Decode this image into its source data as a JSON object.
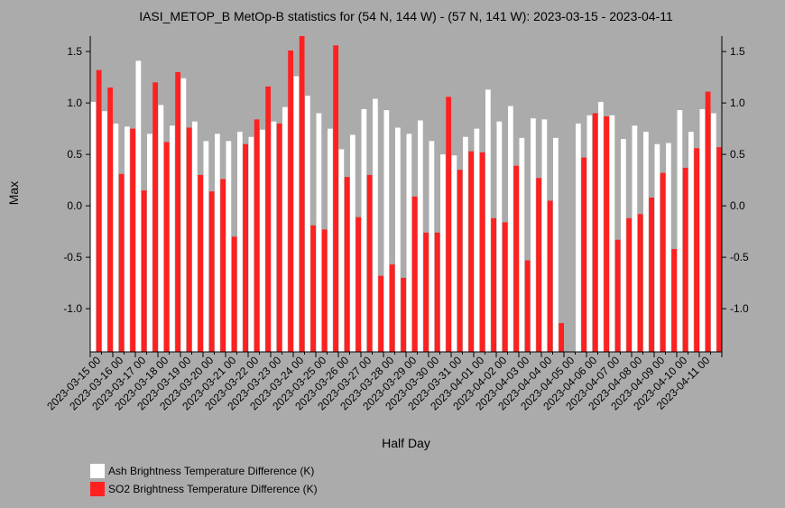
{
  "chart_data": {
    "type": "bar",
    "title": "IASI_METOP_B MetOp-B statistics for (54 N, 144 W) - (57 N, 141 W): 2023-03-15 - 2023-04-11",
    "xlabel": "Half Day",
    "ylabel": "Max",
    "ylim": [
      -1.42,
      1.65
    ],
    "yticks": [
      1.5,
      1.0,
      0.5,
      0.0,
      -0.5,
      -1.0
    ],
    "ytick_labels": [
      "1.5",
      "1.0",
      "0.5",
      "0.0",
      "-0.5",
      "-1.0"
    ],
    "legend_position": "bottom-left",
    "categories": [
      "2023-03-15 00",
      "2023-03-15 12",
      "2023-03-16 00",
      "2023-03-16 12",
      "2023-03-17 00",
      "2023-03-17 12",
      "2023-03-18 00",
      "2023-03-18 12",
      "2023-03-19 00",
      "2023-03-19 12",
      "2023-03-20 00",
      "2023-03-20 12",
      "2023-03-21 00",
      "2023-03-21 12",
      "2023-03-22 00",
      "2023-03-22 12",
      "2023-03-23 00",
      "2023-03-23 12",
      "2023-03-24 00",
      "2023-03-24 12",
      "2023-03-25 00",
      "2023-03-25 12",
      "2023-03-26 00",
      "2023-03-26 12",
      "2023-03-27 00",
      "2023-03-27 12",
      "2023-03-28 00",
      "2023-03-28 12",
      "2023-03-29 00",
      "2023-03-29 12",
      "2023-03-30 00",
      "2023-03-30 12",
      "2023-03-31 00",
      "2023-03-31 12",
      "2023-04-01 00",
      "2023-04-01 12",
      "2023-04-02 00",
      "2023-04-02 12",
      "2023-04-03 00",
      "2023-04-03 12",
      "2023-04-04 00",
      "2023-04-04 12",
      "2023-04-05 00",
      "2023-04-05 12",
      "2023-04-06 00",
      "2023-04-06 12",
      "2023-04-07 00",
      "2023-04-07 12",
      "2023-04-08 00",
      "2023-04-08 12",
      "2023-04-09 00",
      "2023-04-09 12",
      "2023-04-10 00",
      "2023-04-10 12",
      "2023-04-11 00",
      "2023-04-11 12"
    ],
    "xtick_labels": [
      "2023-03-15 00",
      "2023-03-16 00",
      "2023-03-17 00",
      "2023-03-18 00",
      "2023-03-19 00",
      "2023-03-20 00",
      "2023-03-21 00",
      "2023-03-22 00",
      "2023-03-23 00",
      "2023-03-24 00",
      "2023-03-25 00",
      "2023-03-26 00",
      "2023-03-27 00",
      "2023-03-28 00",
      "2023-03-29 00",
      "2023-03-30 00",
      "2023-03-31 00",
      "2023-04-01 00",
      "2023-04-02 00",
      "2023-04-03 00",
      "2023-04-04 00",
      "2023-04-05 00",
      "2023-04-06 00",
      "2023-04-07 00",
      "2023-04-08 00",
      "2023-04-09 00",
      "2023-04-10 00",
      "2023-04-11 00"
    ],
    "series": [
      {
        "name": "Ash Brightness Temperature Difference (K)",
        "color": "#ffffff",
        "values": [
          1.01,
          0.92,
          0.8,
          0.77,
          1.41,
          0.7,
          0.98,
          0.78,
          1.24,
          0.82,
          0.63,
          0.7,
          0.63,
          0.72,
          0.67,
          0.74,
          0.82,
          0.96,
          1.26,
          1.07,
          0.9,
          0.75,
          0.55,
          0.69,
          0.94,
          1.04,
          0.93,
          0.76,
          0.7,
          0.83,
          0.63,
          0.5,
          0.49,
          0.67,
          0.75,
          1.13,
          0.82,
          0.97,
          0.66,
          0.85,
          0.84,
          0.66,
          null,
          0.8,
          0.88,
          1.01,
          0.88,
          0.65,
          0.78,
          0.72,
          0.6,
          0.61,
          0.93,
          0.72,
          0.94,
          0.9
        ]
      },
      {
        "name": "SO2 Brightness Temperature Difference (K)",
        "color": "#ff2020",
        "values": [
          1.32,
          1.15,
          0.31,
          0.75,
          0.15,
          1.2,
          0.62,
          1.3,
          0.76,
          0.3,
          0.14,
          0.26,
          -0.3,
          0.6,
          0.84,
          1.16,
          0.8,
          1.51,
          1.65,
          -0.19,
          -0.23,
          1.56,
          0.28,
          -0.11,
          0.3,
          -0.68,
          -0.57,
          -0.7,
          0.09,
          -0.26,
          -0.26,
          1.06,
          0.35,
          0.53,
          0.52,
          -0.12,
          -0.16,
          0.39,
          -0.53,
          0.27,
          0.05,
          -1.14,
          null,
          0.47,
          0.9,
          0.87,
          -0.33,
          -0.12,
          -0.08,
          0.08,
          0.32,
          -0.42,
          0.37,
          0.56,
          1.11,
          0.57
        ]
      }
    ]
  }
}
